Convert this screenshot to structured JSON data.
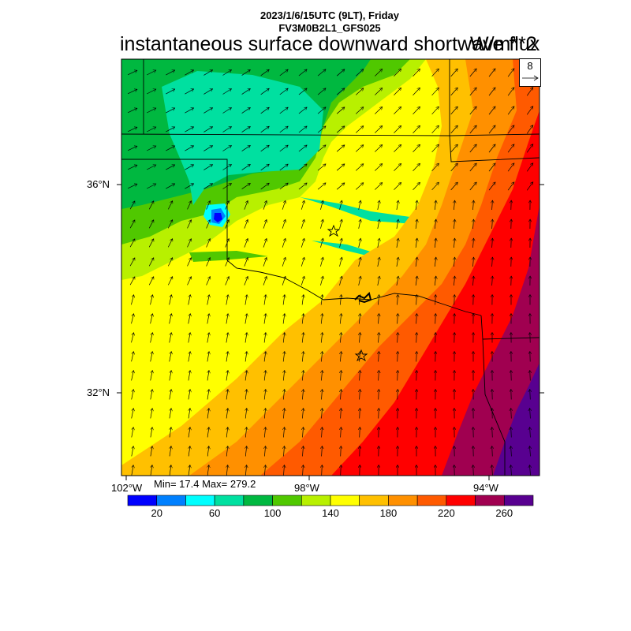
{
  "header": {
    "datetime": "2023/1/6/15UTC (9LT), Friday",
    "model": "FV3M0B2L1_GFS025",
    "title": "instantaneous surface downward shortwave flux",
    "units": "W/m**2"
  },
  "reference_vector": {
    "value": "8",
    "icon": "arrow-right-icon"
  },
  "stats": {
    "text": "Min= 17.4 Max= 279.2",
    "min": 17.4,
    "max": 279.2
  },
  "axes": {
    "lat_labels": [
      "36°N",
      "32°N"
    ],
    "lon_labels": [
      "102°W",
      "98°W",
      "94°W"
    ]
  },
  "colorbar": {
    "labels": [
      "20",
      "60",
      "100",
      "140",
      "180",
      "220",
      "260"
    ],
    "levels": [
      20,
      40,
      60,
      80,
      100,
      120,
      140,
      160,
      180,
      200,
      220,
      240,
      260
    ],
    "colors": [
      "#0000ff",
      "#0080ff",
      "#00ffff",
      "#00e0a0",
      "#00b840",
      "#50c800",
      "#b8f000",
      "#ffff00",
      "#ffc000",
      "#ff9000",
      "#ff5a00",
      "#ff0000",
      "#a00050",
      "#580090"
    ]
  },
  "markers": [
    {
      "name": "city-star-oklahoma-city",
      "icon": "star-icon"
    },
    {
      "name": "city-star-dallas",
      "icon": "star-icon"
    }
  ]
}
